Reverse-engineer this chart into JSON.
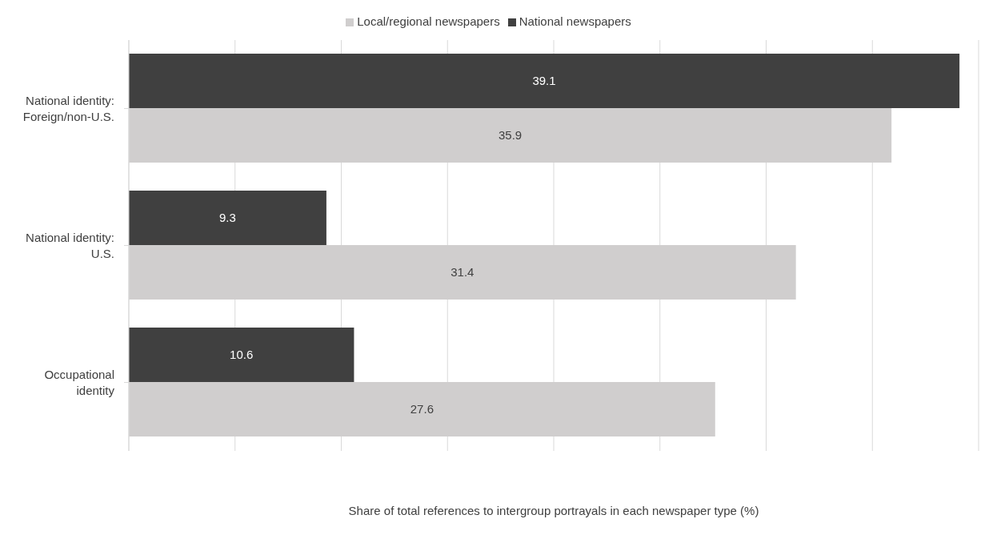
{
  "chart_data": {
    "type": "bar",
    "orientation": "horizontal",
    "xlabel": "Share of total references to intergroup portrayals in each newspaper type (%)",
    "categories": [
      "National identity: Foreign/non-U.S.",
      "National identity: U.S.",
      "Occupational identity"
    ],
    "series": [
      {
        "name": "National newspapers",
        "color": "#404040",
        "values": [
          39.1,
          9.3,
          10.6
        ]
      },
      {
        "name": "Local/regional newspapers",
        "color": "#d0cece",
        "values": [
          35.9,
          31.4,
          27.6
        ]
      }
    ],
    "xlim": [
      0,
      40
    ],
    "xticks": [
      {
        "value": 0,
        "label": null
      },
      {
        "value": 5,
        "label": null
      },
      {
        "value": 10,
        "label": null
      },
      {
        "value": 15,
        "label": null
      },
      {
        "value": 20,
        "label": null
      },
      {
        "value": 25,
        "label": null
      },
      {
        "value": 30,
        "label": null
      },
      {
        "value": 35,
        "label": null
      },
      {
        "value": 40,
        "label": null
      }
    ],
    "tick_labels": "y",
    "grid": "x",
    "legend": "top",
    "data_labels": true
  }
}
